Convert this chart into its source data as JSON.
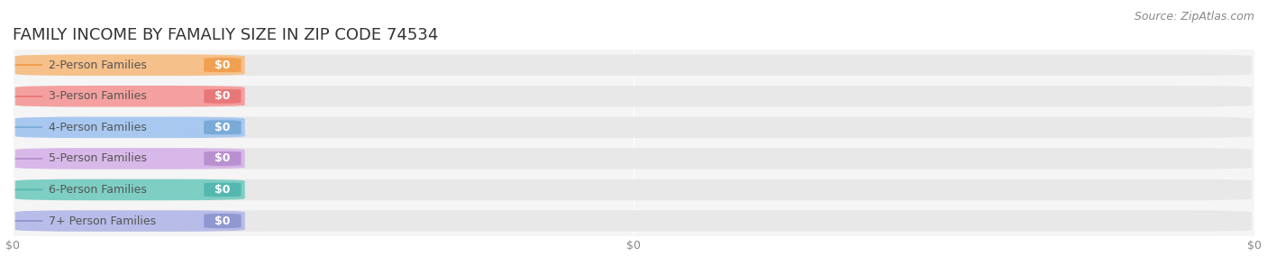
{
  "title": "FAMILY INCOME BY FAMALIY SIZE IN ZIP CODE 74534",
  "source": "Source: ZipAtlas.com",
  "categories": [
    "2-Person Families",
    "3-Person Families",
    "4-Person Families",
    "5-Person Families",
    "6-Person Families",
    "7+ Person Families"
  ],
  "values": [
    0,
    0,
    0,
    0,
    0,
    0
  ],
  "bar_colors": [
    "#f5c08a",
    "#f5a0a0",
    "#a8c8f0",
    "#d8b8e8",
    "#7ecec4",
    "#b8bce8"
  ],
  "dot_colors": [
    "#f0a050",
    "#e87878",
    "#7aaad8",
    "#b890d0",
    "#55b8b0",
    "#9098d0"
  ],
  "background_color": "#ffffff",
  "plot_bg_color": "#f5f5f5",
  "bar_bg_color": "#e8e8e8",
  "title_color": "#333333",
  "source_color": "#888888",
  "label_color": "#555555",
  "grid_color": "#ffffff",
  "title_fontsize": 13,
  "source_fontsize": 9,
  "label_fontsize": 9,
  "value_fontsize": 9,
  "tick_fontsize": 9,
  "tick_color": "#888888"
}
